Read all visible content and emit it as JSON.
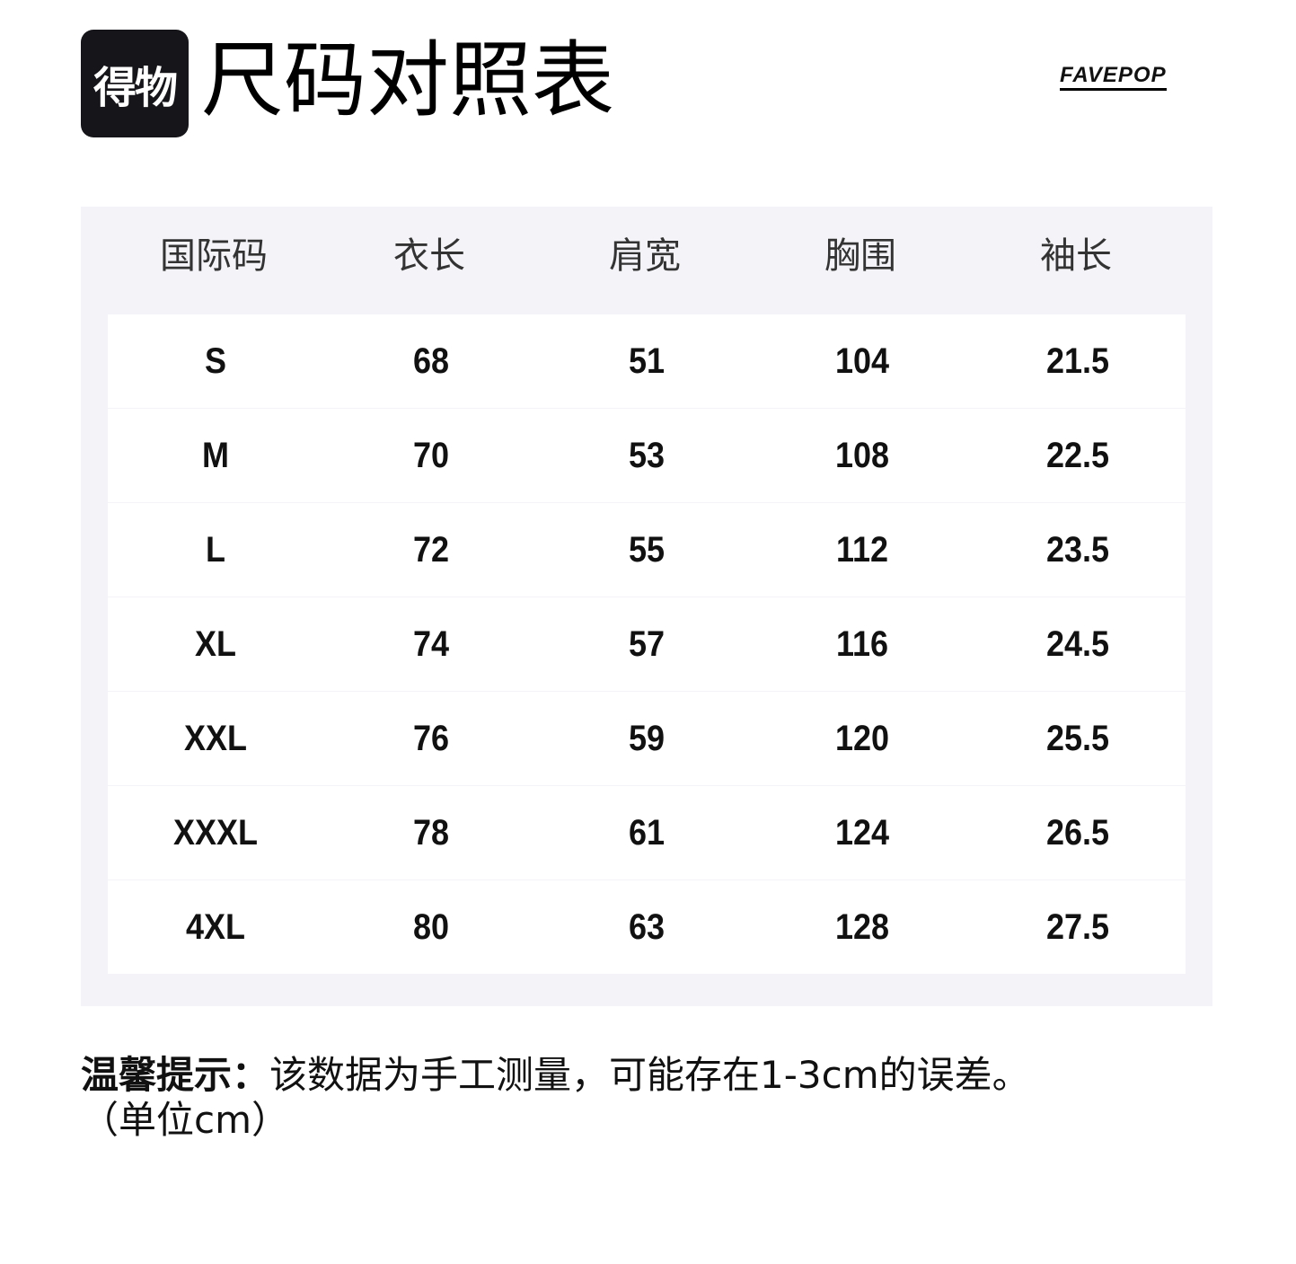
{
  "logo": "得物",
  "title": "尺码对照表",
  "brand": "FAVEPOP",
  "table": {
    "headers": [
      "国际码",
      "衣长",
      "肩宽",
      "胸围",
      "袖长"
    ],
    "rows": [
      [
        "S",
        "68",
        "51",
        "104",
        "21.5"
      ],
      [
        "M",
        "70",
        "53",
        "108",
        "22.5"
      ],
      [
        "L",
        "72",
        "55",
        "112",
        "23.5"
      ],
      [
        "XL",
        "74",
        "57",
        "116",
        "24.5"
      ],
      [
        "XXL",
        "76",
        "59",
        "120",
        "25.5"
      ],
      [
        "XXXL",
        "78",
        "61",
        "124",
        "26.5"
      ],
      [
        "4XL",
        "80",
        "63",
        "128",
        "27.5"
      ]
    ]
  },
  "note": {
    "label": "温馨提示：",
    "text": "该数据为手工测量，可能存在1-3cm的误差。",
    "unit": "（单位cm）"
  }
}
